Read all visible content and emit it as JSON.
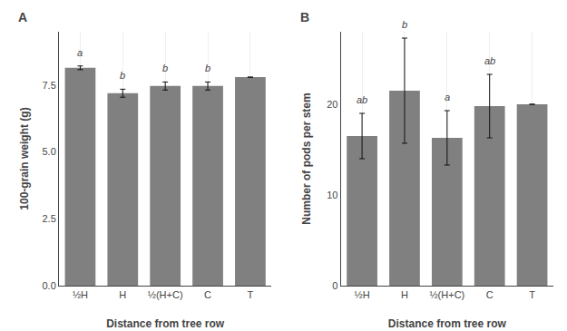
{
  "chart_data": [
    {
      "type": "bar",
      "title": "A",
      "categories": [
        "½H",
        "H",
        "½(H+C)",
        "C",
        "T"
      ],
      "values": [
        8.15,
        7.2,
        7.47,
        7.47,
        7.8
      ],
      "errors": [
        0.07,
        0.15,
        0.15,
        0.15,
        0.0
      ],
      "annotations": [
        "a",
        "b",
        "b",
        "b",
        null
      ],
      "xlabel": "Distance from tree row",
      "ylabel": "100-grain weight (g)",
      "ylim": [
        0,
        9.5
      ],
      "yticks": [
        {
          "value": 0,
          "label": "0.0"
        },
        2.5,
        {
          "value": 5,
          "label": "5.0"
        },
        7.5
      ],
      "color": "#808080",
      "grid": "x"
    },
    {
      "type": "bar",
      "title": "B",
      "categories": [
        "½H",
        "H",
        "½(H+C)",
        "C",
        "T"
      ],
      "values": [
        16.5,
        21.5,
        16.3,
        19.8,
        20.0
      ],
      "errors": [
        2.5,
        5.8,
        3.0,
        3.5,
        0.0
      ],
      "annotations": [
        "ab",
        "b",
        "a",
        "ab",
        null
      ],
      "xlabel": "Distance from tree row",
      "ylabel": "Number of pods per stem",
      "ylim": [
        0,
        28
      ],
      "yticks": [
        0,
        10,
        20
      ],
      "color": "#808080",
      "grid": "x"
    }
  ]
}
